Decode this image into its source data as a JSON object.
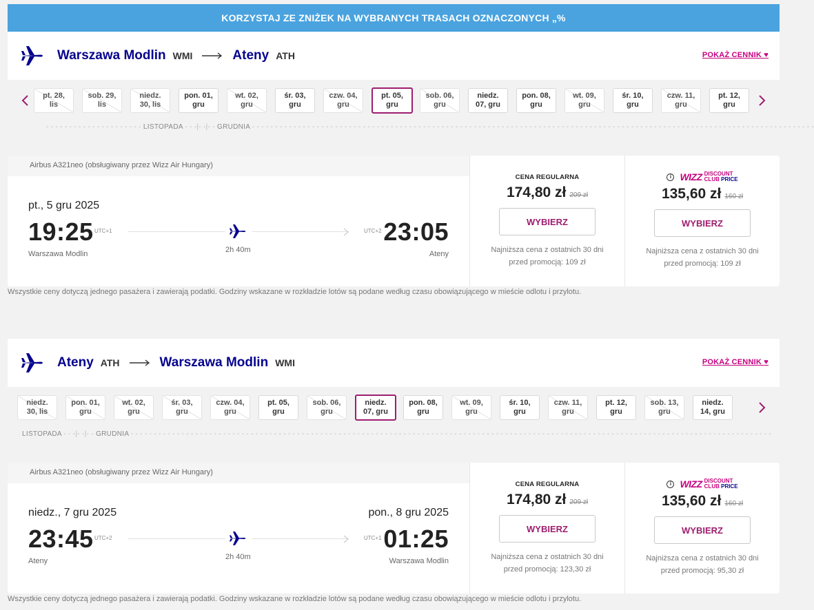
{
  "banner": {
    "text": "KORZYSTAJ ZE ZNIŻEK NA WYBRANYCH TRASACH OZNACZONYCH „%"
  },
  "colors": {
    "brand_blue": "#06038d",
    "brand_magenta": "#c6007e",
    "banner_blue": "#4aa3df",
    "selected_border": "#9e1d6f"
  },
  "outbound": {
    "origin_city": "Warszawa Modlin",
    "origin_code": "WMI",
    "dest_city": "Ateny",
    "dest_code": "ATH",
    "show_prices": "POKAŻ CENNIK",
    "dates": [
      {
        "l1": "pt. 28,",
        "l2": "lis",
        "state": "unavail"
      },
      {
        "l1": "sob. 29,",
        "l2": "lis",
        "state": "unavail"
      },
      {
        "l1": "niedz.",
        "l2": "30, lis",
        "state": "unavail"
      },
      {
        "l1": "pon. 01,",
        "l2": "gru",
        "state": "avail"
      },
      {
        "l1": "wt. 02,",
        "l2": "gru",
        "state": "unavail"
      },
      {
        "l1": "śr. 03,",
        "l2": "gru",
        "state": "avail"
      },
      {
        "l1": "czw. 04,",
        "l2": "gru",
        "state": "unavail"
      },
      {
        "l1": "pt. 05,",
        "l2": "gru",
        "state": "selected"
      },
      {
        "l1": "sob. 06,",
        "l2": "gru",
        "state": "unavail"
      },
      {
        "l1": "niedz.",
        "l2": "07, gru",
        "state": "avail"
      },
      {
        "l1": "pon. 08,",
        "l2": "gru",
        "state": "avail"
      },
      {
        "l1": "wt. 09,",
        "l2": "gru",
        "state": "unavail"
      },
      {
        "l1": "śr. 10,",
        "l2": "gru",
        "state": "avail"
      },
      {
        "l1": "czw. 11,",
        "l2": "gru",
        "state": "unavail"
      },
      {
        "l1": "pt. 12,",
        "l2": "gru",
        "state": "avail"
      }
    ],
    "month_prev": "LISTOPADA",
    "month_next": "GRUDNIA",
    "aircraft": "Airbus A321neo (obsługiwany przez Wizz Air Hungary)",
    "dep_date": "pt., 5 gru 2025",
    "arr_date": "",
    "dep_time": "19:25",
    "dep_utc": "UTC+1",
    "arr_time": "23:05",
    "arr_utc": "UTC+2",
    "dep_airport": "Warszawa Modlin",
    "arr_airport": "Ateny",
    "duration": "2h 40m",
    "regular": {
      "title": "CENA REGULARNA",
      "price": "174,80 zł",
      "old_price": "209 zł",
      "button": "WYBIERZ",
      "lowest": "Najniższa cena z ostatnich 30 dni przed promocją: 109 zł"
    },
    "club": {
      "info_icon": "i",
      "logo_wizz": "WIZZ",
      "logo_line1": "DISCOUNT",
      "logo_line2": "CLUB",
      "logo_line3": "PRICE",
      "price": "135,60 zł",
      "old_price": "160 zł",
      "button": "WYBIERZ",
      "lowest": "Najniższa cena z ostatnich 30 dni przed promocją: 109 zł"
    },
    "disclaimer": "Wszystkie ceny dotyczą jednego pasażera i zawierają podatki. Godziny wskazane w rozkładzie lotów są podane według czasu obowiązującego w mieście odlotu i przylotu."
  },
  "inbound": {
    "origin_city": "Ateny",
    "origin_code": "ATH",
    "dest_city": "Warszawa Modlin",
    "dest_code": "WMI",
    "show_prices": "POKAŻ CENNIK",
    "dates": [
      {
        "l1": "niedz.",
        "l2": "30, lis",
        "state": "unavail"
      },
      {
        "l1": "pon. 01,",
        "l2": "gru",
        "state": "unavail"
      },
      {
        "l1": "wt. 02,",
        "l2": "gru",
        "state": "unavail"
      },
      {
        "l1": "śr. 03,",
        "l2": "gru",
        "state": "unavail"
      },
      {
        "l1": "czw. 04,",
        "l2": "gru",
        "state": "unavail"
      },
      {
        "l1": "pt. 05,",
        "l2": "gru",
        "state": "avail"
      },
      {
        "l1": "sob. 06,",
        "l2": "gru",
        "state": "unavail"
      },
      {
        "l1": "niedz.",
        "l2": "07, gru",
        "state": "selected"
      },
      {
        "l1": "pon. 08,",
        "l2": "gru",
        "state": "avail"
      },
      {
        "l1": "wt. 09,",
        "l2": "gru",
        "state": "unavail"
      },
      {
        "l1": "śr. 10,",
        "l2": "gru",
        "state": "avail"
      },
      {
        "l1": "czw. 11,",
        "l2": "gru",
        "state": "unavail"
      },
      {
        "l1": "pt. 12,",
        "l2": "gru",
        "state": "avail"
      },
      {
        "l1": "sob. 13,",
        "l2": "gru",
        "state": "unavail"
      },
      {
        "l1": "niedz.",
        "l2": "14, gru",
        "state": "avail"
      }
    ],
    "month_prev": "LISTOPADA",
    "month_next": "GRUDNIA",
    "aircraft": "Airbus A321neo (obsługiwany przez Wizz Air Hungary)",
    "dep_date": "niedz., 7 gru 2025",
    "arr_date": "pon., 8 gru 2025",
    "dep_time": "23:45",
    "dep_utc": "UTC+2",
    "arr_time": "01:25",
    "arr_utc": "UTC+1",
    "dep_airport": "Ateny",
    "arr_airport": "Warszawa Modlin",
    "duration": "2h 40m",
    "regular": {
      "title": "CENA REGULARNA",
      "price": "174,80 zł",
      "old_price": "209 zł",
      "button": "WYBIERZ",
      "lowest": "Najniższa cena z ostatnich 30 dni przed promocją: 123,30 zł"
    },
    "club": {
      "info_icon": "i",
      "logo_wizz": "WIZZ",
      "logo_line1": "DISCOUNT",
      "logo_line2": "CLUB",
      "logo_line3": "PRICE",
      "price": "135,60 zł",
      "old_price": "160 zł",
      "button": "WYBIERZ",
      "lowest": "Najniższa cena z ostatnich 30 dni przed promocją: 95,30 zł"
    },
    "disclaimer": "Wszystkie ceny dotyczą jednego pasażera i zawierają podatki. Godziny wskazane w rozkładzie lotów są podane według czasu obowiązującego w mieście odlotu i przylotu."
  }
}
